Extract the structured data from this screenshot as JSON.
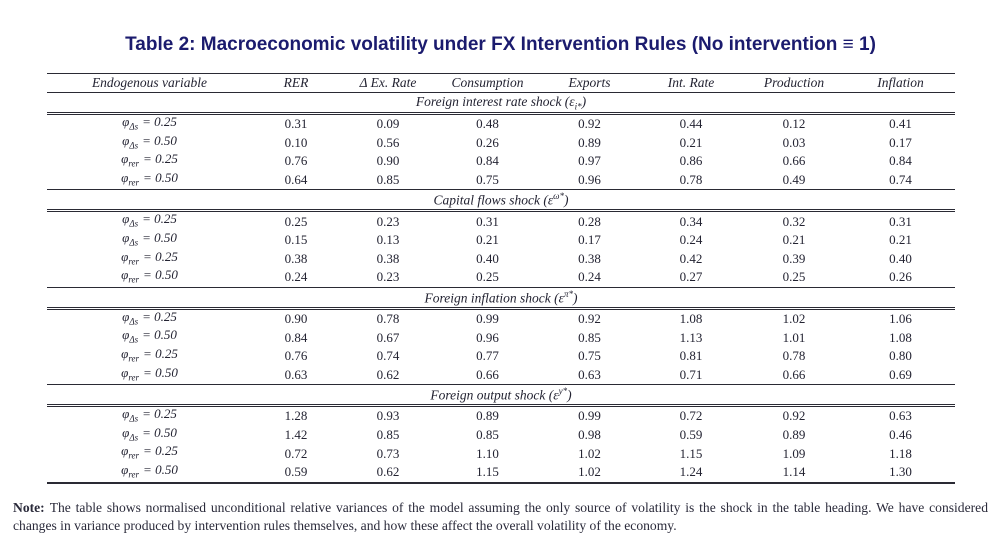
{
  "title": "Table 2: Macroeconomic volatility under FX Intervention Rules (No intervention ≡ 1)",
  "colors": {
    "title_navy": "#1b1b6e",
    "body_text": "#232332",
    "background": "#ffffff"
  },
  "table": {
    "columns": [
      "Endogenous variable",
      "RER",
      "Δ Ex. Rate",
      "Consumption",
      "Exports",
      "Int. Rate",
      "Production",
      "Inflation"
    ],
    "sections": [
      {
        "heading": {
          "prefix": "Foreign interest rate shock (ε",
          "script": "i*",
          "pos": "sub",
          "suffix": ")"
        },
        "rows": [
          {
            "label": {
              "symbol": "φ",
              "sub": "Δs",
              "eq": "= 0.25"
            },
            "values": [
              "0.31",
              "0.09",
              "0.48",
              "0.92",
              "0.44",
              "0.12",
              "0.41"
            ]
          },
          {
            "label": {
              "symbol": "φ",
              "sub": "Δs",
              "eq": "= 0.50"
            },
            "values": [
              "0.10",
              "0.56",
              "0.26",
              "0.89",
              "0.21",
              "0.03",
              "0.17"
            ]
          },
          {
            "label": {
              "symbol": "φ",
              "sub": "rer",
              "eq": "= 0.25"
            },
            "values": [
              "0.76",
              "0.90",
              "0.84",
              "0.97",
              "0.86",
              "0.66",
              "0.84"
            ]
          },
          {
            "label": {
              "symbol": "φ",
              "sub": "rer",
              "eq": "= 0.50"
            },
            "values": [
              "0.64",
              "0.85",
              "0.75",
              "0.96",
              "0.78",
              "0.49",
              "0.74"
            ]
          }
        ]
      },
      {
        "heading": {
          "prefix": "Capital flows shock (ε",
          "script": "ω*",
          "pos": "sup",
          "suffix": ")"
        },
        "rows": [
          {
            "label": {
              "symbol": "φ",
              "sub": "Δs",
              "eq": "= 0.25"
            },
            "values": [
              "0.25",
              "0.23",
              "0.31",
              "0.28",
              "0.34",
              "0.32",
              "0.31"
            ]
          },
          {
            "label": {
              "symbol": "φ",
              "sub": "Δs",
              "eq": "= 0.50"
            },
            "values": [
              "0.15",
              "0.13",
              "0.21",
              "0.17",
              "0.24",
              "0.21",
              "0.21"
            ]
          },
          {
            "label": {
              "symbol": "φ",
              "sub": "rer",
              "eq": "= 0.25"
            },
            "values": [
              "0.38",
              "0.38",
              "0.40",
              "0.38",
              "0.42",
              "0.39",
              "0.40"
            ]
          },
          {
            "label": {
              "symbol": "φ",
              "sub": "rer",
              "eq": "= 0.50"
            },
            "values": [
              "0.24",
              "0.23",
              "0.25",
              "0.24",
              "0.27",
              "0.25",
              "0.26"
            ]
          }
        ]
      },
      {
        "heading": {
          "prefix": "Foreign inflation shock (ε",
          "script": "π*",
          "pos": "sup",
          "suffix": ")"
        },
        "rows": [
          {
            "label": {
              "symbol": "φ",
              "sub": "Δs",
              "eq": "= 0.25"
            },
            "values": [
              "0.90",
              "0.78",
              "0.99",
              "0.92",
              "1.08",
              "1.02",
              "1.06"
            ]
          },
          {
            "label": {
              "symbol": "φ",
              "sub": "Δs",
              "eq": "= 0.50"
            },
            "values": [
              "0.84",
              "0.67",
              "0.96",
              "0.85",
              "1.13",
              "1.01",
              "1.08"
            ]
          },
          {
            "label": {
              "symbol": "φ",
              "sub": "rer",
              "eq": "= 0.25"
            },
            "values": [
              "0.76",
              "0.74",
              "0.77",
              "0.75",
              "0.81",
              "0.78",
              "0.80"
            ]
          },
          {
            "label": {
              "symbol": "φ",
              "sub": "rer",
              "eq": "= 0.50"
            },
            "values": [
              "0.63",
              "0.62",
              "0.66",
              "0.63",
              "0.71",
              "0.66",
              "0.69"
            ]
          }
        ]
      },
      {
        "heading": {
          "prefix": "Foreign output shock (ε",
          "script": "y*",
          "pos": "sup",
          "suffix": ")"
        },
        "rows": [
          {
            "label": {
              "symbol": "φ",
              "sub": "Δs",
              "eq": "= 0.25"
            },
            "values": [
              "1.28",
              "0.93",
              "0.89",
              "0.99",
              "0.72",
              "0.92",
              "0.63"
            ]
          },
          {
            "label": {
              "symbol": "φ",
              "sub": "Δs",
              "eq": "= 0.50"
            },
            "values": [
              "1.42",
              "0.85",
              "0.85",
              "0.98",
              "0.59",
              "0.89",
              "0.46"
            ]
          },
          {
            "label": {
              "symbol": "φ",
              "sub": "rer",
              "eq": "= 0.25"
            },
            "values": [
              "0.72",
              "0.73",
              "1.10",
              "1.02",
              "1.15",
              "1.09",
              "1.18"
            ]
          },
          {
            "label": {
              "symbol": "φ",
              "sub": "rer",
              "eq": "= 0.50"
            },
            "values": [
              "0.59",
              "0.62",
              "1.15",
              "1.02",
              "1.24",
              "1.14",
              "1.30"
            ]
          }
        ]
      }
    ]
  },
  "note": {
    "label": "Note:",
    "text": "The table shows normalised unconditional relative variances of the model assuming the only source of volatility is the shock in the table heading. We have considered changes in variance produced by intervention rules themselves, and how these affect the overall volatility of the economy."
  }
}
